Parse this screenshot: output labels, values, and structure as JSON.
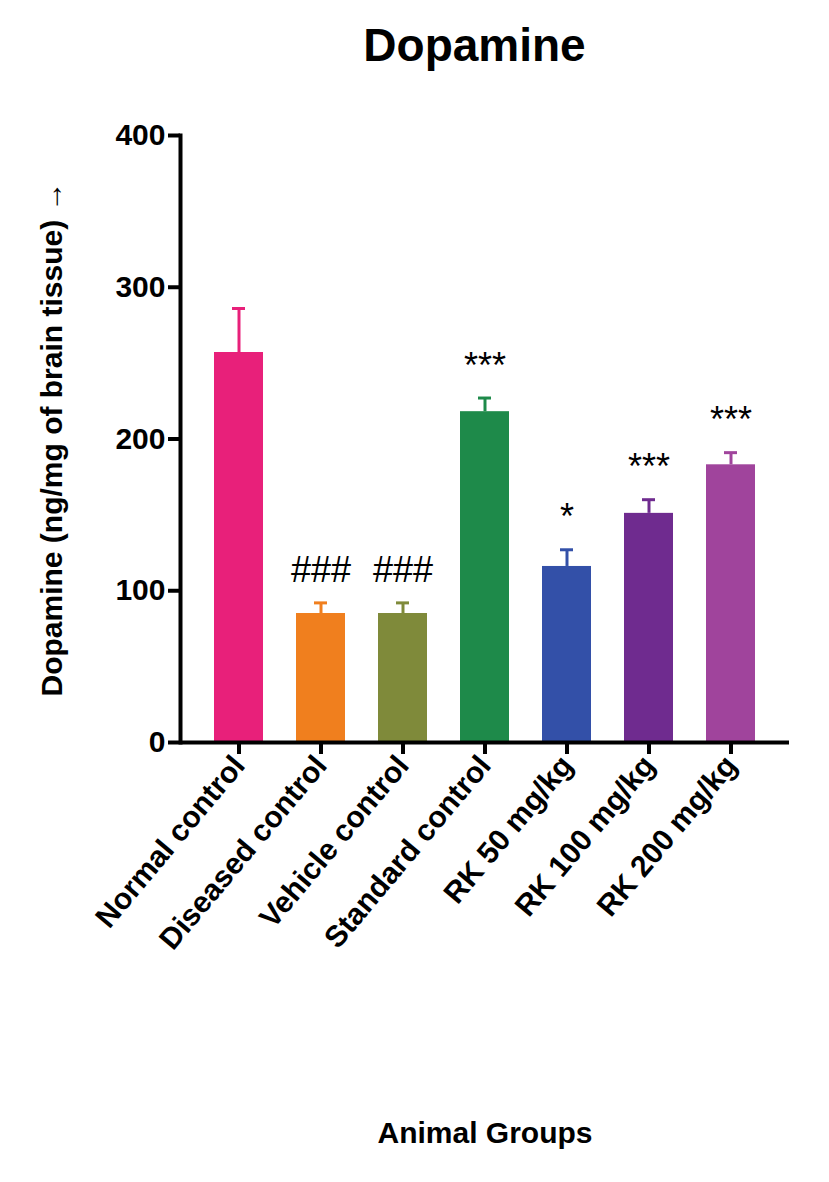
{
  "chart_data": {
    "type": "bar",
    "title": "Dopamine",
    "categories": [
      "Normal control",
      "Diseased control",
      "Vehicle control",
      "Standard control",
      "RK 50 mg/kg",
      "RK 100 mg/kg",
      "RK 200 mg/kg"
    ],
    "values": [
      257,
      85,
      85,
      218,
      116,
      151,
      183
    ],
    "errors": [
      29,
      7,
      7,
      9,
      11,
      9,
      8
    ],
    "annotations": [
      null,
      "###",
      "###",
      "***",
      "*",
      "***",
      "***"
    ],
    "colors": [
      "#e8207a",
      "#f07f1e",
      "#7f8a3a",
      "#1e8a4a",
      "#3350a8",
      "#6f2b8f",
      "#a0449c"
    ],
    "xlabel": "Animal Groups",
    "ylabel": "Dopamine (ng/mg of brain tissue)",
    "ylim": [
      0,
      400
    ],
    "yticks": [
      0,
      100,
      200,
      300,
      400
    ]
  }
}
